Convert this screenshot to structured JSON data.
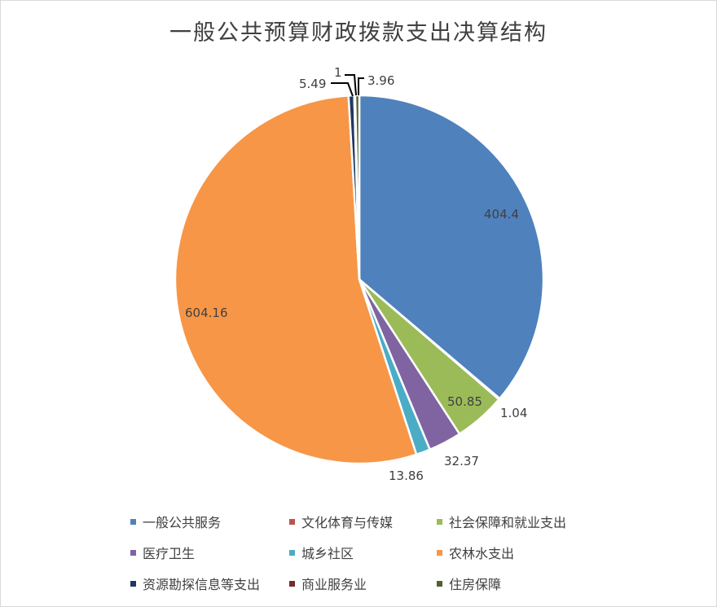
{
  "chart_data": {
    "type": "pie",
    "title": "一般公共预算财政拨款支出决算结构",
    "series": [
      {
        "name": "一般公共服务",
        "value": 404.4,
        "color": "#4f81bd"
      },
      {
        "name": "文化体育与传媒",
        "value": 1.04,
        "color": "#c0504d"
      },
      {
        "name": "社会保障和就业支出",
        "value": 50.85,
        "color": "#9bbb59"
      },
      {
        "name": "医疗卫生",
        "value": 32.37,
        "color": "#8064a2"
      },
      {
        "name": "城乡社区",
        "value": 13.86,
        "color": "#4bacc6"
      },
      {
        "name": "农林水支出",
        "value": 604.16,
        "color": "#f79646"
      },
      {
        "name": "资源勘探信息等支出",
        "value": 5.49,
        "color": "#1f3864"
      },
      {
        "name": "商业服务业",
        "value": 1,
        "color": "#772c2a"
      },
      {
        "name": "住房保障",
        "value": 3.96,
        "color": "#4f6228"
      }
    ],
    "data_labels": [
      "404.4",
      "1.04",
      "50.85",
      "32.37",
      "13.86",
      "604.16",
      "5.49",
      "1",
      "3.96"
    ],
    "legend_position": "bottom"
  }
}
